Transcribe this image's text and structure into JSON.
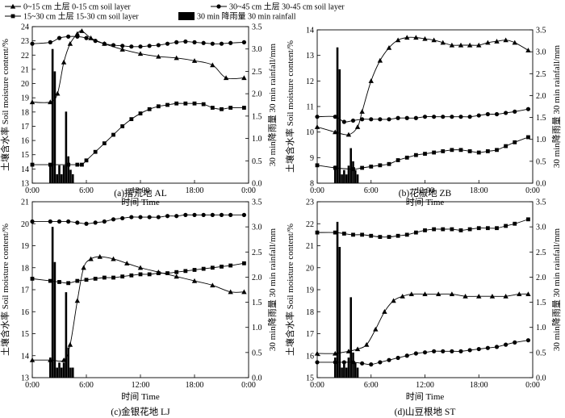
{
  "legend": {
    "items": [
      {
        "key": "l1",
        "label": "0~15 cm 土层 0-15 cm soil layer",
        "marker": "triangle"
      },
      {
        "key": "l3",
        "label": "30~45 cm 土层 30-45 cm soil layer",
        "marker": "circle"
      },
      {
        "key": "l2",
        "label": "15~30 cm 土层 15-30 cm soil layer",
        "marker": "square"
      },
      {
        "key": "rain",
        "label": "30 min 降雨量 30 min rainfall",
        "marker": "bar"
      }
    ]
  },
  "colors": {
    "ink": "#000000",
    "background": "#ffffff"
  },
  "chart_data": [
    {
      "type": "line",
      "id": "AL",
      "caption": "(a)撂荒地 AL",
      "xlabel": "时间 Time",
      "ylabel": "土壤含水率 Soil moisture content/%",
      "y2label": "30 min降雨量  30 min rainfall/mm",
      "xlim": [
        0,
        24
      ],
      "xticks": [
        "0:00",
        "6:00",
        "12:00",
        "18:00",
        "0:00"
      ],
      "ylim": [
        13,
        24
      ],
      "yticks": [
        "13",
        "14",
        "15",
        "16",
        "17",
        "18",
        "19",
        "20",
        "21",
        "22",
        "23",
        "24"
      ],
      "y2lim": [
        0,
        3.5
      ],
      "y2ticks": [
        "0.0",
        "0.5",
        "1.0",
        "1.5",
        "2.0",
        "2.5",
        "3.0",
        "3.5"
      ],
      "series": [
        {
          "name": "0~15 cm",
          "marker": "triangle",
          "x": [
            0,
            2,
            2.8,
            3.5,
            4.2,
            5,
            5.5,
            6.5,
            8,
            10,
            12,
            14,
            16,
            18,
            20,
            21.5,
            23.5
          ],
          "y": [
            18.7,
            18.7,
            19.3,
            21.5,
            22.8,
            23.5,
            23.7,
            23.2,
            22.8,
            22.4,
            22.1,
            21.9,
            21.8,
            21.6,
            21.3,
            20.4,
            20.4
          ]
        },
        {
          "name": "15~30 cm",
          "marker": "square",
          "x": [
            0,
            2,
            4,
            5,
            5.5,
            6,
            7,
            8,
            9,
            10,
            11,
            12,
            13,
            14,
            15,
            16,
            17,
            18,
            19,
            20,
            21,
            22,
            23.5
          ],
          "y": [
            14.3,
            14.3,
            14.3,
            14.3,
            14.3,
            14.6,
            15.2,
            15.8,
            16.4,
            17.0,
            17.5,
            17.9,
            18.2,
            18.4,
            18.5,
            18.6,
            18.6,
            18.6,
            18.55,
            18.3,
            18.2,
            18.3,
            18.3
          ]
        },
        {
          "name": "30~45 cm",
          "marker": "circle",
          "x": [
            0,
            2,
            3,
            4,
            5,
            6,
            7,
            8,
            9,
            10,
            11,
            12,
            13,
            14,
            15,
            16,
            17,
            18,
            19,
            20,
            21,
            22,
            23.5
          ],
          "y": [
            22.8,
            22.9,
            23.2,
            23.3,
            23.3,
            23.2,
            23.0,
            22.8,
            22.7,
            22.65,
            22.6,
            22.6,
            22.65,
            22.7,
            22.8,
            22.9,
            22.95,
            22.9,
            22.85,
            22.8,
            22.8,
            22.85,
            22.9
          ]
        }
      ],
      "rainfall": {
        "x": [
          2.0,
          2.25,
          2.5,
          2.75,
          3.0,
          3.25,
          3.5,
          3.75,
          4.0,
          4.25,
          4.5
        ],
        "y": [
          0.4,
          3.0,
          2.5,
          0.2,
          0.4,
          0.2,
          0.4,
          1.6,
          0.6,
          0.3,
          0.2
        ]
      }
    },
    {
      "type": "line",
      "id": "ZB",
      "caption": "(b)花椒地 ZB",
      "xlabel": "时间 Time",
      "ylabel": "土壤含水率 Soil moisture content/%",
      "y2label": "30 min降雨量  30 min rainfall/mm",
      "xlim": [
        0,
        24
      ],
      "xticks": [
        "0:00",
        "6:00",
        "12:00",
        "18:00",
        "0:00"
      ],
      "ylim": [
        8,
        14
      ],
      "yticks": [
        "8",
        "9",
        "10",
        "11",
        "12",
        "13",
        "14"
      ],
      "y2lim": [
        0,
        3.5
      ],
      "y2ticks": [
        "0.0",
        "0.5",
        "1.0",
        "1.5",
        "2.0",
        "2.5",
        "3.0",
        "3.5"
      ],
      "series": [
        {
          "name": "0~15 cm",
          "marker": "triangle",
          "x": [
            0,
            2,
            3.5,
            4.5,
            5,
            6,
            7,
            8,
            9,
            10,
            11,
            12,
            13,
            14,
            15,
            16,
            17,
            18,
            19,
            20,
            21,
            22,
            23.5
          ],
          "y": [
            10.2,
            10.0,
            9.9,
            10.2,
            10.8,
            12.0,
            12.8,
            13.3,
            13.6,
            13.7,
            13.7,
            13.65,
            13.6,
            13.5,
            13.4,
            13.4,
            13.4,
            13.4,
            13.5,
            13.55,
            13.6,
            13.5,
            13.2
          ]
        },
        {
          "name": "15~30 cm",
          "marker": "square",
          "x": [
            0,
            2,
            4,
            5,
            6,
            7,
            8,
            9,
            10,
            11,
            12,
            13,
            14,
            15,
            16,
            17,
            18,
            19,
            20,
            21,
            22,
            23.5
          ],
          "y": [
            8.7,
            8.6,
            8.55,
            8.6,
            8.65,
            8.7,
            8.75,
            8.9,
            9.0,
            9.1,
            9.15,
            9.2,
            9.25,
            9.3,
            9.3,
            9.25,
            9.2,
            9.25,
            9.3,
            9.45,
            9.6,
            9.8
          ]
        },
        {
          "name": "30~45 cm",
          "marker": "circle",
          "x": [
            0,
            2,
            3,
            4,
            5,
            6,
            7,
            8,
            9,
            10,
            11,
            12,
            13,
            14,
            15,
            16,
            17,
            18,
            19,
            20,
            21,
            22,
            23.5
          ],
          "y": [
            10.6,
            10.6,
            10.4,
            10.45,
            10.5,
            10.5,
            10.5,
            10.5,
            10.55,
            10.55,
            10.55,
            10.6,
            10.6,
            10.6,
            10.6,
            10.6,
            10.6,
            10.65,
            10.7,
            10.7,
            10.75,
            10.8,
            10.9
          ]
        }
      ],
      "rainfall": {
        "x": [
          2.0,
          2.25,
          2.5,
          2.75,
          3.0,
          3.25,
          3.5,
          3.75,
          4.0,
          4.25,
          4.5
        ],
        "y": [
          0.4,
          3.1,
          2.6,
          0.2,
          0.3,
          0.2,
          0.4,
          0.8,
          0.5,
          0.3,
          0.2
        ]
      }
    },
    {
      "type": "line",
      "id": "LJ",
      "caption": "(c)金银花地 LJ",
      "xlabel": "时间 Time",
      "ylabel": "土壤含水率 Soil moisture content/%",
      "y2label": "30 min降雨量  30 min rainfall/mm",
      "xlim": [
        0,
        24
      ],
      "xticks": [
        "0:00",
        "6:00",
        "12:00",
        "18:00",
        "0:00"
      ],
      "ylim": [
        13,
        21
      ],
      "yticks": [
        "13",
        "14",
        "15",
        "16",
        "17",
        "18",
        "19",
        "20",
        "21"
      ],
      "y2lim": [
        0,
        3.5
      ],
      "y2ticks": [
        "0.0",
        "0.5",
        "1.0",
        "1.5",
        "2.0",
        "2.5",
        "3.0",
        "3.5"
      ],
      "series": [
        {
          "name": "0~15 cm",
          "marker": "triangle",
          "x": [
            0,
            2,
            3.5,
            4.2,
            5,
            5.7,
            6.5,
            7.5,
            9,
            10.5,
            12,
            14,
            16,
            18,
            20,
            22,
            23.5
          ],
          "y": [
            13.8,
            13.8,
            13.8,
            14.5,
            16.5,
            18.0,
            18.4,
            18.5,
            18.4,
            18.2,
            18.0,
            17.8,
            17.6,
            17.4,
            17.2,
            16.9,
            16.9
          ]
        },
        {
          "name": "15~30 cm",
          "marker": "square",
          "x": [
            0,
            2,
            3,
            4,
            5,
            6,
            7,
            8,
            9,
            10,
            11,
            12,
            13,
            14,
            15,
            16,
            17,
            18,
            19,
            20,
            21,
            22,
            23.5
          ],
          "y": [
            17.5,
            17.4,
            17.35,
            17.3,
            17.4,
            17.45,
            17.5,
            17.55,
            17.55,
            17.6,
            17.65,
            17.7,
            17.7,
            17.75,
            17.75,
            17.8,
            17.85,
            17.9,
            17.95,
            18.0,
            18.05,
            18.1,
            18.2
          ]
        },
        {
          "name": "30~45 cm",
          "marker": "circle",
          "x": [
            0,
            2,
            3,
            4,
            5,
            6,
            7,
            8,
            9,
            10,
            11,
            12,
            13,
            14,
            15,
            16,
            17,
            18,
            19,
            20,
            21,
            22,
            23.5
          ],
          "y": [
            20.1,
            20.1,
            20.1,
            20.1,
            20.05,
            20.0,
            20.05,
            20.1,
            20.2,
            20.25,
            20.3,
            20.3,
            20.3,
            20.3,
            20.35,
            20.35,
            20.4,
            20.4,
            20.4,
            20.4,
            20.4,
            20.4,
            20.4
          ]
        }
      ],
      "rainfall": {
        "x": [
          2.0,
          2.25,
          2.5,
          2.75,
          3.0,
          3.25,
          3.5,
          3.75,
          4.0,
          4.25,
          4.5
        ],
        "y": [
          0.4,
          3.0,
          2.3,
          0.2,
          0.3,
          0.2,
          0.3,
          1.7,
          0.6,
          0.2,
          0.2
        ]
      }
    },
    {
      "type": "line",
      "id": "ST",
      "caption": "(d)山豆根地 ST",
      "xlabel": "时间 Time",
      "ylabel": "土壤含水率 Soil moisture content/%",
      "y2label": "30 min降雨量  30 min rainfall/mm",
      "xlim": [
        0,
        24
      ],
      "xticks": [
        "0:00",
        "6:00",
        "12:00",
        "18:00",
        "0:00"
      ],
      "ylim": [
        15,
        23
      ],
      "yticks": [
        "15",
        "16",
        "17",
        "18",
        "19",
        "20",
        "21",
        "22",
        "23"
      ],
      "y2lim": [
        0,
        3.5
      ],
      "y2ticks": [
        "0.0",
        "0.5",
        "1.0",
        "1.5",
        "2.0",
        "2.5",
        "3.0",
        "3.5"
      ],
      "series": [
        {
          "name": "0~15 cm",
          "marker": "triangle",
          "x": [
            0,
            2,
            3.5,
            4.5,
            5.5,
            6.5,
            7.5,
            8.5,
            9.5,
            10.5,
            12,
            13.5,
            15,
            16.5,
            18,
            19.5,
            21,
            22.5,
            23.5
          ],
          "y": [
            16.1,
            16.1,
            16.2,
            16.3,
            16.5,
            17.2,
            18.0,
            18.5,
            18.7,
            18.8,
            18.8,
            18.8,
            18.8,
            18.7,
            18.7,
            18.7,
            18.7,
            18.8,
            18.8
          ]
        },
        {
          "name": "15~30 cm",
          "marker": "square",
          "x": [
            0,
            2,
            3,
            4,
            5,
            6,
            7,
            8,
            9,
            10,
            11,
            12,
            13,
            14,
            15,
            16,
            17,
            18,
            19,
            20,
            21,
            22,
            23.5
          ],
          "y": [
            21.6,
            21.6,
            21.55,
            21.5,
            21.5,
            21.45,
            21.4,
            21.4,
            21.45,
            21.5,
            21.6,
            21.7,
            21.75,
            21.75,
            21.75,
            21.7,
            21.75,
            21.8,
            21.8,
            21.8,
            21.9,
            22.0,
            22.2
          ]
        },
        {
          "name": "30~45 cm",
          "marker": "circle",
          "x": [
            0,
            2,
            3,
            4,
            5,
            6,
            7,
            8,
            9,
            10,
            11,
            12,
            13,
            14,
            15,
            16,
            17,
            18,
            19,
            20,
            21,
            22,
            23.5
          ],
          "y": [
            15.7,
            15.7,
            15.7,
            15.7,
            15.65,
            15.6,
            15.7,
            15.8,
            15.9,
            16.0,
            16.1,
            16.15,
            16.2,
            16.2,
            16.2,
            16.2,
            16.25,
            16.3,
            16.35,
            16.4,
            16.5,
            16.6,
            16.7
          ]
        }
      ],
      "rainfall": {
        "x": [
          2.0,
          2.25,
          2.5,
          2.75,
          3.0,
          3.25,
          3.5,
          3.75,
          4.0,
          4.25,
          4.5
        ],
        "y": [
          0.4,
          3.1,
          2.6,
          0.2,
          0.3,
          0.2,
          0.4,
          1.6,
          0.5,
          0.3,
          0.2
        ]
      }
    }
  ]
}
